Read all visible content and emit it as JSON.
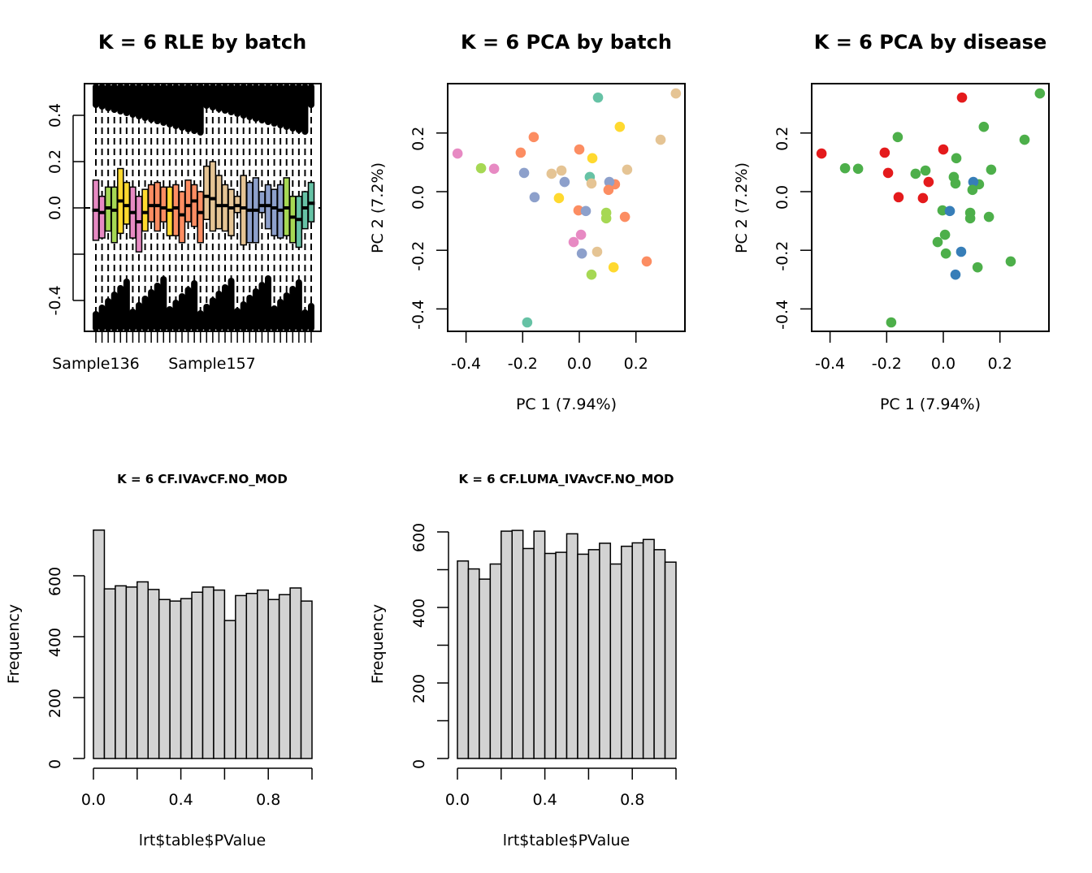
{
  "chart_data": [
    {
      "id": "rle",
      "type": "boxplot",
      "title": "K = 6 RLE by batch",
      "xlabel": "",
      "ylabel": "",
      "ylim": [
        -0.54,
        0.54
      ],
      "yticks": [
        "-0.4",
        "0.2",
        "0.4",
        "0.0"
      ],
      "ytick_values": [
        -0.4,
        -0.2,
        0.0,
        0.2,
        0.4
      ],
      "ytick_labels": [
        "-0.4",
        "",
        "0.0",
        "0.2",
        "0.4"
      ],
      "x_tick_labels": [
        "Sample136",
        "Sample157"
      ],
      "reference_line": 0.0,
      "samples": [
        {
          "color": "#E78AC3",
          "q1": -0.14,
          "med": -0.01,
          "q3": 0.12
        },
        {
          "color": "#E78AC3",
          "q1": -0.13,
          "med": -0.02,
          "q3": 0.05
        },
        {
          "color": "#A6D854",
          "q1": -0.1,
          "med": 0.0,
          "q3": 0.09
        },
        {
          "color": "#A6D854",
          "q1": -0.15,
          "med": -0.01,
          "q3": 0.09
        },
        {
          "color": "#FFD92F",
          "q1": -0.11,
          "med": 0.03,
          "q3": 0.17
        },
        {
          "color": "#FFD92F",
          "q1": -0.07,
          "med": 0.01,
          "q3": 0.11
        },
        {
          "color": "#E78AC3",
          "q1": -0.13,
          "med": -0.02,
          "q3": 0.09
        },
        {
          "color": "#E78AC3",
          "q1": -0.19,
          "med": -0.06,
          "q3": 0.05
        },
        {
          "color": "#FFD92F",
          "q1": -0.1,
          "med": -0.02,
          "q3": 0.08
        },
        {
          "color": "#FC8D62",
          "q1": -0.06,
          "med": 0.01,
          "q3": 0.1
        },
        {
          "color": "#FC8D62",
          "q1": -0.1,
          "med": 0.01,
          "q3": 0.11
        },
        {
          "color": "#FC8D62",
          "q1": -0.06,
          "med": 0.0,
          "q3": 0.09
        },
        {
          "color": "#FFD92F",
          "q1": -0.12,
          "med": -0.01,
          "q3": 0.09
        },
        {
          "color": "#FC8D62",
          "q1": -0.12,
          "med": 0.0,
          "q3": 0.1
        },
        {
          "color": "#FC8D62",
          "q1": -0.15,
          "med": -0.03,
          "q3": 0.07
        },
        {
          "color": "#FC8D62",
          "q1": -0.06,
          "med": 0.01,
          "q3": 0.12
        },
        {
          "color": "#FC8D62",
          "q1": -0.08,
          "med": 0.03,
          "q3": 0.1
        },
        {
          "color": "#FC8D62",
          "q1": -0.15,
          "med": -0.02,
          "q3": 0.07
        },
        {
          "color": "#E5C494",
          "q1": -0.05,
          "med": 0.05,
          "q3": 0.18
        },
        {
          "color": "#E5C494",
          "q1": -0.1,
          "med": 0.04,
          "q3": 0.2
        },
        {
          "color": "#E5C494",
          "q1": -0.09,
          "med": 0.01,
          "q3": 0.14
        },
        {
          "color": "#E5C494",
          "q1": -0.1,
          "med": 0.01,
          "q3": 0.1
        },
        {
          "color": "#E5C494",
          "q1": -0.12,
          "med": 0.0,
          "q3": 0.08
        },
        {
          "color": "#E5C494",
          "q1": -0.02,
          "med": 0.01,
          "q3": 0.05
        },
        {
          "color": "#E5C494",
          "q1": -0.16,
          "med": 0.0,
          "q3": 0.14
        },
        {
          "color": "#8DA0CB",
          "q1": -0.15,
          "med": -0.01,
          "q3": 0.11
        },
        {
          "color": "#8DA0CB",
          "q1": -0.15,
          "med": -0.01,
          "q3": 0.13
        },
        {
          "color": "#8DA0CB",
          "q1": -0.02,
          "med": 0.01,
          "q3": 0.07
        },
        {
          "color": "#8DA0CB",
          "q1": -0.09,
          "med": 0.01,
          "q3": 0.1
        },
        {
          "color": "#8DA0CB",
          "q1": -0.12,
          "med": 0.0,
          "q3": 0.08
        },
        {
          "color": "#8DA0CB",
          "q1": -0.13,
          "med": -0.01,
          "q3": 0.1
        },
        {
          "color": "#A6D854",
          "q1": -0.12,
          "med": 0.0,
          "q3": 0.13
        },
        {
          "color": "#A6D854",
          "q1": -0.15,
          "med": -0.04,
          "q3": 0.05
        },
        {
          "color": "#66C2A5",
          "q1": -0.17,
          "med": -0.05,
          "q3": 0.05
        },
        {
          "color": "#66C2A5",
          "q1": -0.09,
          "med": 0.0,
          "q3": 0.07
        },
        {
          "color": "#66C2A5",
          "q1": -0.06,
          "med": 0.02,
          "q3": 0.11
        }
      ]
    },
    {
      "id": "pca-batch",
      "type": "scatter",
      "title": "K = 6 PCA by batch",
      "xlabel": "PC 1 (7.94%)",
      "ylabel": "PC 2 (7.2%)",
      "xlim": [
        -0.465,
        0.373
      ],
      "ylim": [
        -0.475,
        0.368
      ],
      "xticks": [
        -0.4,
        -0.2,
        0.0,
        0.2
      ],
      "xtick_labels": [
        "-0.4",
        "-0.2",
        "0.0",
        "0.2"
      ],
      "yticks": [
        -0.4,
        -0.2,
        0.0,
        0.2
      ],
      "ytick_labels": [
        "-0.4",
        "-0.2",
        "0.0",
        "0.2"
      ],
      "points": [
        {
          "x": 0.066,
          "y": 0.321,
          "color": "#66C2A5"
        },
        {
          "x": 0.341,
          "y": 0.335,
          "color": "#E5C494"
        },
        {
          "x": 0.143,
          "y": 0.221,
          "color": "#FFD92F"
        },
        {
          "x": 0.287,
          "y": 0.177,
          "color": "#E5C494"
        },
        {
          "x": -0.161,
          "y": 0.186,
          "color": "#FC8D62"
        },
        {
          "x": 0.0,
          "y": 0.144,
          "color": "#FC8D62"
        },
        {
          "x": -0.207,
          "y": 0.133,
          "color": "#FC8D62"
        },
        {
          "x": -0.43,
          "y": 0.13,
          "color": "#E78AC3"
        },
        {
          "x": 0.046,
          "y": 0.114,
          "color": "#FFD92F"
        },
        {
          "x": -0.347,
          "y": 0.08,
          "color": "#A6D854"
        },
        {
          "x": -0.301,
          "y": 0.078,
          "color": "#E78AC3"
        },
        {
          "x": -0.195,
          "y": 0.064,
          "color": "#8DA0CB"
        },
        {
          "x": -0.098,
          "y": 0.061,
          "color": "#E5C494"
        },
        {
          "x": -0.063,
          "y": 0.072,
          "color": "#E5C494"
        },
        {
          "x": -0.052,
          "y": 0.033,
          "color": "#8DA0CB"
        },
        {
          "x": 0.037,
          "y": 0.05,
          "color": "#66C2A5"
        },
        {
          "x": 0.043,
          "y": 0.028,
          "color": "#E5C494"
        },
        {
          "x": 0.126,
          "y": 0.025,
          "color": "#FC8D62"
        },
        {
          "x": 0.106,
          "y": 0.033,
          "color": "#8DA0CB"
        },
        {
          "x": 0.103,
          "y": 0.006,
          "color": "#FC8D62"
        },
        {
          "x": 0.169,
          "y": 0.075,
          "color": "#E5C494"
        },
        {
          "x": -0.158,
          "y": -0.019,
          "color": "#8DA0CB"
        },
        {
          "x": -0.072,
          "y": -0.022,
          "color": "#FFD92F"
        },
        {
          "x": -0.003,
          "y": -0.064,
          "color": "#FC8D62"
        },
        {
          "x": 0.023,
          "y": -0.066,
          "color": "#8DA0CB"
        },
        {
          "x": 0.095,
          "y": -0.072,
          "color": "#A6D854"
        },
        {
          "x": 0.095,
          "y": -0.091,
          "color": "#A6D854"
        },
        {
          "x": 0.161,
          "y": -0.086,
          "color": "#FC8D62"
        },
        {
          "x": 0.006,
          "y": -0.147,
          "color": "#E78AC3"
        },
        {
          "x": -0.02,
          "y": -0.172,
          "color": "#E78AC3"
        },
        {
          "x": 0.009,
          "y": -0.211,
          "color": "#8DA0CB"
        },
        {
          "x": 0.063,
          "y": -0.205,
          "color": "#E5C494"
        },
        {
          "x": 0.121,
          "y": -0.258,
          "color": "#FFD92F"
        },
        {
          "x": 0.238,
          "y": -0.238,
          "color": "#FC8D62"
        },
        {
          "x": 0.043,
          "y": -0.283,
          "color": "#A6D854"
        },
        {
          "x": -0.184,
          "y": -0.446,
          "color": "#66C2A5"
        }
      ]
    },
    {
      "id": "pca-disease",
      "type": "scatter",
      "title": "K = 6 PCA by disease",
      "xlabel": "PC 1 (7.94%)",
      "ylabel": "PC 2 (7.2%)",
      "xlim": [
        -0.465,
        0.373
      ],
      "ylim": [
        -0.475,
        0.368
      ],
      "xticks": [
        -0.4,
        -0.2,
        0.0,
        0.2
      ],
      "xtick_labels": [
        "-0.4",
        "-0.2",
        "0.0",
        "0.2"
      ],
      "yticks": [
        -0.4,
        -0.2,
        0.0,
        0.2
      ],
      "ytick_labels": [
        "-0.4",
        "-0.2",
        "0.0",
        "0.2"
      ],
      "points": [
        {
          "x": 0.066,
          "y": 0.321,
          "color": "#E41A1C"
        },
        {
          "x": 0.341,
          "y": 0.335,
          "color": "#4DAF4A"
        },
        {
          "x": 0.143,
          "y": 0.221,
          "color": "#4DAF4A"
        },
        {
          "x": 0.287,
          "y": 0.177,
          "color": "#4DAF4A"
        },
        {
          "x": -0.161,
          "y": 0.186,
          "color": "#4DAF4A"
        },
        {
          "x": 0.0,
          "y": 0.144,
          "color": "#E41A1C"
        },
        {
          "x": -0.207,
          "y": 0.133,
          "color": "#E41A1C"
        },
        {
          "x": -0.43,
          "y": 0.13,
          "color": "#E41A1C"
        },
        {
          "x": 0.046,
          "y": 0.114,
          "color": "#4DAF4A"
        },
        {
          "x": -0.347,
          "y": 0.08,
          "color": "#4DAF4A"
        },
        {
          "x": -0.301,
          "y": 0.078,
          "color": "#4DAF4A"
        },
        {
          "x": -0.195,
          "y": 0.064,
          "color": "#E41A1C"
        },
        {
          "x": -0.098,
          "y": 0.061,
          "color": "#4DAF4A"
        },
        {
          "x": -0.063,
          "y": 0.072,
          "color": "#4DAF4A"
        },
        {
          "x": -0.052,
          "y": 0.033,
          "color": "#E41A1C"
        },
        {
          "x": 0.037,
          "y": 0.05,
          "color": "#4DAF4A"
        },
        {
          "x": 0.043,
          "y": 0.028,
          "color": "#4DAF4A"
        },
        {
          "x": 0.126,
          "y": 0.025,
          "color": "#4DAF4A"
        },
        {
          "x": 0.106,
          "y": 0.033,
          "color": "#377EB8"
        },
        {
          "x": 0.103,
          "y": 0.006,
          "color": "#4DAF4A"
        },
        {
          "x": 0.169,
          "y": 0.075,
          "color": "#4DAF4A"
        },
        {
          "x": -0.158,
          "y": -0.019,
          "color": "#E41A1C"
        },
        {
          "x": -0.072,
          "y": -0.022,
          "color": "#E41A1C"
        },
        {
          "x": -0.003,
          "y": -0.064,
          "color": "#4DAF4A"
        },
        {
          "x": 0.023,
          "y": -0.066,
          "color": "#377EB8"
        },
        {
          "x": 0.095,
          "y": -0.072,
          "color": "#4DAF4A"
        },
        {
          "x": 0.095,
          "y": -0.091,
          "color": "#4DAF4A"
        },
        {
          "x": 0.161,
          "y": -0.086,
          "color": "#4DAF4A"
        },
        {
          "x": 0.006,
          "y": -0.147,
          "color": "#4DAF4A"
        },
        {
          "x": -0.02,
          "y": -0.172,
          "color": "#4DAF4A"
        },
        {
          "x": 0.009,
          "y": -0.211,
          "color": "#4DAF4A"
        },
        {
          "x": 0.063,
          "y": -0.205,
          "color": "#377EB8"
        },
        {
          "x": 0.121,
          "y": -0.258,
          "color": "#4DAF4A"
        },
        {
          "x": 0.238,
          "y": -0.238,
          "color": "#4DAF4A"
        },
        {
          "x": 0.043,
          "y": -0.283,
          "color": "#377EB8"
        },
        {
          "x": -0.184,
          "y": -0.446,
          "color": "#4DAF4A"
        }
      ]
    },
    {
      "id": "hist-ivavcf",
      "type": "bar",
      "title": "K = 6 CF.IVAvCF.NO_MOD",
      "xlabel": "lrt$table$PValue",
      "ylabel": "Frequency",
      "xlim": [
        0,
        1
      ],
      "ylim": [
        0,
        750
      ],
      "xticks": [
        0,
        0.2,
        0.4,
        0.6,
        0.8,
        1.0
      ],
      "xtick_labels": [
        "0.0",
        "",
        "0.4",
        "",
        "0.8",
        ""
      ],
      "yticks": [
        0,
        200,
        400,
        600
      ],
      "ytick_labels": [
        "0",
        "200",
        "400",
        "600"
      ],
      "bin_width": 0.05,
      "values": [
        750,
        557,
        567,
        563,
        580,
        555,
        522,
        517,
        525,
        546,
        563,
        553,
        453,
        535,
        542,
        553,
        522,
        538,
        560,
        517
      ]
    },
    {
      "id": "hist-lumaivavcf",
      "type": "bar",
      "title": "K = 6 CF.LUMA_IVAvCF.NO_MOD",
      "xlabel": "lrt$table$PValue",
      "ylabel": "Frequency",
      "xlim": [
        0,
        1
      ],
      "ylim": [
        0,
        600
      ],
      "xticks": [
        0,
        0.2,
        0.4,
        0.6,
        0.8,
        1.0
      ],
      "xtick_labels": [
        "0.0",
        "",
        "0.4",
        "",
        "0.8",
        ""
      ],
      "yticks": [
        0,
        100,
        200,
        300,
        400,
        500,
        600
      ],
      "ytick_labels": [
        "0",
        "",
        "200",
        "",
        "400",
        "",
        "600"
      ],
      "bin_width": 0.05,
      "values": [
        523,
        502,
        475,
        515,
        602,
        604,
        556,
        602,
        543,
        546,
        595,
        541,
        553,
        570,
        515,
        562,
        571,
        580,
        553,
        520
      ]
    }
  ]
}
